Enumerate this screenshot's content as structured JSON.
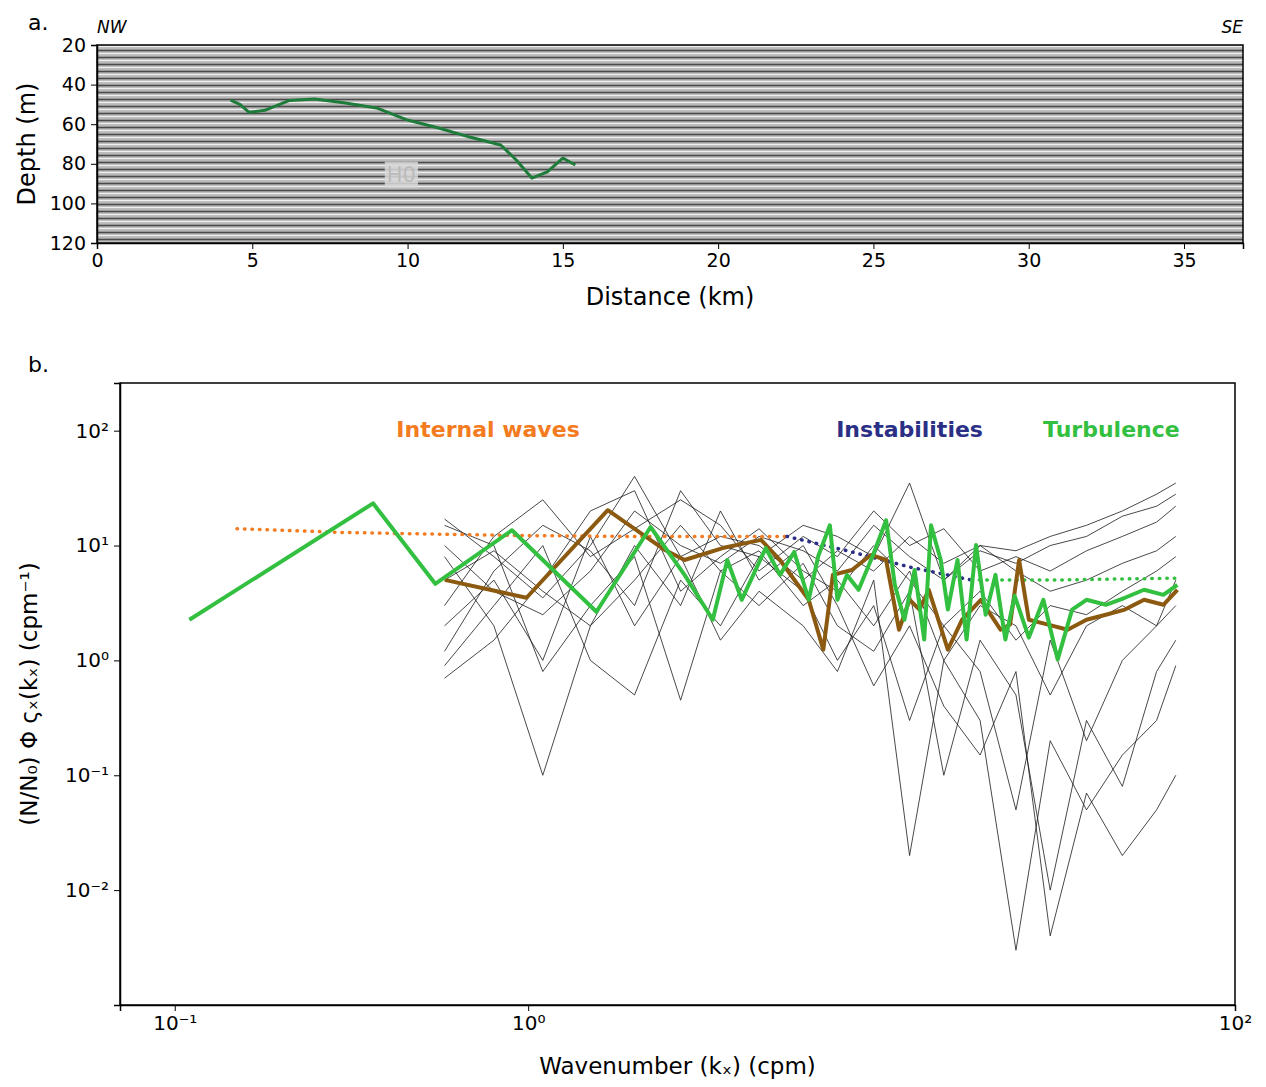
{
  "chart_data": [
    {
      "type": "line",
      "panel_label": "a.",
      "direction_labels": [
        "NW",
        "SE"
      ],
      "xlabel": "Distance (km)",
      "ylabel": "Depth (m)",
      "xlim": [
        0,
        36.9
      ],
      "ylim": [
        120,
        20
      ],
      "xticks": [
        0,
        5,
        10,
        15,
        20,
        25,
        30,
        35
      ],
      "yticks": [
        20,
        40,
        60,
        80,
        100,
        120
      ],
      "series": [
        {
          "color": "#1e7b3a",
          "line_style": "solid",
          "x": [
            4.3,
            4.6,
            4.9,
            5.4,
            6.2,
            7,
            8,
            9,
            10,
            11,
            12,
            13,
            13.5,
            14,
            14.5,
            15,
            15.4
          ],
          "values": [
            47.8,
            50,
            54,
            53,
            48,
            47.3,
            49.3,
            51.8,
            57.9,
            61.9,
            66.5,
            70.5,
            78.1,
            87.2,
            84.1,
            77.1,
            80.6
          ]
        }
      ],
      "annotations": [
        {
          "text": "H0",
          "x": 9.8,
          "y": 86
        }
      ]
    },
    {
      "type": "line",
      "panel_label": "b.",
      "xlabel": "Wavenumber (kₓ) (cpm)",
      "ylabel": "(N/N₀) Φ ςₓ(kₓ) (cpm⁻¹)",
      "log": true,
      "xlim": [
        0.07,
        100
      ],
      "ylim": [
        0.001,
        260
      ],
      "xticks": [
        {
          "value": 0.1,
          "label": "10⁻¹"
        },
        {
          "value": 1,
          "label": "10⁰"
        },
        {
          "value": 100,
          "label": "10²"
        }
      ],
      "yticks": [
        {
          "value": 0.01,
          "label": "10⁻²"
        },
        {
          "value": 0.1,
          "label": "10⁻¹"
        },
        {
          "value": 1,
          "label": "10⁰"
        },
        {
          "value": 10,
          "label": "10¹"
        },
        {
          "value": 100,
          "label": "10²"
        }
      ],
      "series": [
        {
          "color": "#1a1a1a",
          "line_style": "solid",
          "x": [
            0.58,
            0.8,
            1.1,
            1.5,
            2.0,
            2.7,
            3.5,
            4.5,
            6,
            7.5,
            9.5,
            12,
            15,
            19,
            24,
            30,
            38,
            48,
            60,
            68
          ],
          "values": [
            17,
            8,
            3.5,
            10,
            40,
            8,
            12,
            10,
            5,
            9,
            6,
            12,
            7,
            10,
            9,
            12,
            15,
            20,
            28,
            35
          ]
        },
        {
          "color": "#1a1a1a",
          "line_style": "solid",
          "x": [
            0.58,
            0.8,
            1.1,
            1.5,
            2.0,
            2.7,
            3.5,
            4.5,
            6,
            7.5,
            9.5,
            12,
            15,
            19,
            24,
            30,
            38,
            48,
            60,
            68
          ],
          "values": [
            10,
            4,
            2.5,
            6,
            20,
            10,
            7,
            12,
            9,
            6,
            15,
            8,
            5,
            9,
            7,
            10,
            12,
            18,
            22,
            28
          ]
        },
        {
          "color": "#1a1a1a",
          "line_style": "solid",
          "x": [
            0.58,
            0.8,
            1.1,
            1.5,
            2.0,
            2.7,
            3.5,
            4.5,
            6,
            7.5,
            9.5,
            12,
            15,
            19,
            24,
            30,
            38,
            48,
            60,
            68
          ],
          "values": [
            3,
            12,
            25,
            8,
            14,
            25,
            15,
            6,
            12,
            8,
            20,
            10,
            14,
            6,
            8,
            6,
            9,
            12,
            16,
            22
          ]
        },
        {
          "color": "#1a1a1a",
          "line_style": "solid",
          "x": [
            0.58,
            0.8,
            1.1,
            1.5,
            2.0,
            2.7,
            3.5,
            4.5,
            6,
            7.5,
            9.5,
            12,
            15,
            19,
            24,
            30,
            38,
            48,
            60,
            68
          ],
          "values": [
            1.2,
            6,
            15,
            9,
            3,
            30,
            10,
            8,
            15,
            12,
            8,
            35,
            5,
            10,
            6,
            4,
            5,
            7,
            9,
            12
          ]
        },
        {
          "color": "#1a1a1a",
          "line_style": "solid",
          "x": [
            0.58,
            0.8,
            1.1,
            1.5,
            2.0,
            2.7,
            3.5,
            4.5,
            6,
            7.5,
            9.5,
            12,
            15,
            19,
            24,
            30,
            38,
            48,
            60,
            68
          ],
          "values": [
            0.7,
            1.5,
            5,
            20,
            30,
            4,
            8,
            14,
            6,
            4,
            10,
            5,
            2,
            4,
            1.5,
            3,
            2.5,
            4,
            6,
            8
          ]
        },
        {
          "color": "#1a1a1a",
          "line_style": "solid",
          "x": [
            0.58,
            0.8,
            1.1,
            1.5,
            2.0,
            2.7,
            3.5,
            4.5,
            6,
            7.5,
            9.5,
            12,
            15,
            19,
            24,
            30,
            38,
            48,
            60,
            68
          ],
          "values": [
            8,
            2,
            0.1,
            2,
            5,
            15,
            6,
            9,
            3,
            5,
            2,
            6,
            1,
            3,
            2,
            0.5,
            2,
            3,
            2,
            5
          ]
        },
        {
          "color": "#1a1a1a",
          "line_style": "solid",
          "x": [
            0.58,
            0.8,
            1.1,
            1.5,
            2.0,
            2.7,
            3.5,
            4.5,
            6,
            7.5,
            9.5,
            12,
            15,
            19,
            24,
            30,
            38,
            48,
            60,
            68
          ],
          "values": [
            0.9,
            3,
            10,
            1,
            0.5,
            5,
            2,
            8,
            4,
            1,
            3,
            0.3,
            2,
            0.8,
            0.05,
            1.5,
            0.2,
            1,
            2,
            3
          ]
        },
        {
          "color": "#1a1a1a",
          "line_style": "solid",
          "x": [
            0.58,
            0.8,
            1.1,
            1.5,
            2.0,
            2.7,
            3.5,
            4.5,
            6,
            7.5,
            9.5,
            12,
            15,
            19,
            24,
            30,
            38,
            48,
            60,
            68
          ],
          "values": [
            15,
            10,
            0.8,
            3,
            8,
            0.45,
            6,
            3,
            7,
            2,
            1.2,
            4,
            0.1,
            1.5,
            0.5,
            0.01,
            0.3,
            0.08,
            0.8,
            1.5
          ]
        },
        {
          "color": "#1a1a1a",
          "line_style": "solid",
          "x": [
            0.58,
            0.8,
            1.1,
            1.5,
            2.0,
            2.7,
            3.5,
            4.5,
            6,
            7.5,
            9.5,
            12,
            15,
            19,
            24,
            30,
            38,
            48,
            60,
            68
          ],
          "values": [
            2,
            5,
            1,
            12,
            2,
            8,
            1.5,
            4,
            2,
            0.8,
            5,
            0.02,
            1,
            0.3,
            0.003,
            0.2,
            0.05,
            0.15,
            0.3,
            0.9
          ]
        },
        {
          "color": "#1a1a1a",
          "line_style": "solid",
          "x": [
            0.58,
            0.8,
            1.1,
            1.5,
            2.0,
            2.7,
            3.5,
            4.5,
            6,
            7.5,
            9.5,
            12,
            15,
            19,
            24,
            30,
            38,
            48,
            60,
            68
          ],
          "values": [
            5,
            9,
            4,
            2,
            10,
            3,
            20,
            5,
            10,
            3,
            0.6,
            2,
            0.4,
            0.15,
            0.8,
            0.004,
            0.07,
            0.02,
            0.05,
            0.1
          ]
        },
        {
          "color": "#f47b20",
          "line_style": "dotted",
          "x": [
            0.15,
            0.3,
            0.6,
            1,
            2,
            5.4
          ],
          "values": [
            14,
            13,
            12.5,
            12.2,
            12,
            12
          ]
        },
        {
          "color": "#2b2f86",
          "line_style": "dotted",
          "x": [
            5.4,
            8,
            12,
            18
          ],
          "values": [
            12,
            9,
            6.5,
            5
          ]
        },
        {
          "color": "#33c041",
          "line_style": "dotted",
          "x": [
            18,
            30,
            45,
            68
          ],
          "values": [
            5,
            5,
            5.1,
            5.2
          ]
        },
        {
          "color": "#8b5a10",
          "line_style": "solid",
          "x": [
            0.581,
            0.989,
            1.68,
            2.44,
            2.77,
            3.55,
            4.56,
            5.16,
            6.22,
            6.84,
            7.28,
            8.24,
            9.33,
            10.3,
            11.2,
            12.0,
            12.8,
            13.6,
            15.4,
            16.9,
            19.1,
            21.7,
            23.1,
            24.5,
            26.1,
            29.6,
            33.6,
            38.0,
            43.1,
            48.8,
            55.3,
            62.7,
            68.7
          ],
          "values": [
            5.02,
            3.51,
            20.3,
            9.14,
            7.48,
            9.51,
            11.2,
            7.48,
            3.37,
            1.24,
            5.55,
            6.13,
            8.28,
            7.48,
            1.85,
            3.37,
            2.77,
            4.12,
            1.24,
            2.26,
            3.37,
            1.85,
            2.05,
            7.48,
            2.26,
            2.05,
            1.85,
            2.26,
            2.5,
            2.77,
            3.37,
            3.05,
            4.12
          ]
        },
        {
          "color": "#33c041",
          "line_style": "solid",
          "x": [
            0.11,
            0.364,
            0.546,
            0.9,
            1.56,
            2.22,
            2.77,
            3.33,
            3.66,
            4.02,
            4.7,
            5.16,
            5.66,
            6.22,
            6.62,
            7.14,
            7.5,
            7.98,
            8.61,
            9.46,
            10.3,
            10.9,
            11.6,
            12.4,
            13.2,
            13.8,
            14.7,
            15.4,
            16.4,
            17.4,
            18.5,
            19.7,
            21.0,
            22.4,
            23.8,
            26.1,
            28.7,
            31.5,
            34.6,
            38.0,
            43.1,
            48.8,
            55.3,
            62.7,
            68.7
          ],
          "values": [
            2.26,
            23.3,
            4.64,
            13.6,
            2.65,
            14.5,
            5.55,
            2.26,
            7.48,
            3.37,
            9.51,
            5.55,
            8.79,
            3.37,
            8.11,
            15.0,
            3.37,
            5.55,
            4.12,
            8.28,
            16.6,
            4.55,
            2.26,
            6.13,
            1.52,
            15.0,
            7.48,
            2.77,
            7.48,
            1.52,
            10.1,
            2.5,
            5.55,
            1.52,
            3.65,
            1.58,
            3.37,
            1.02,
            2.77,
            3.37,
            3.05,
            3.51,
            4.12,
            3.72,
            4.55
          ]
        }
      ],
      "annotations": [
        {
          "text": "Internal waves",
          "x": 0.77,
          "y": 100,
          "color": "#f47b20"
        },
        {
          "text": "Instabilities",
          "x": 12.0,
          "y": 100,
          "color": "#2b2f86"
        },
        {
          "text": "Turbulence",
          "x": 44.7,
          "y": 100,
          "color": "#33c041"
        }
      ]
    }
  ]
}
